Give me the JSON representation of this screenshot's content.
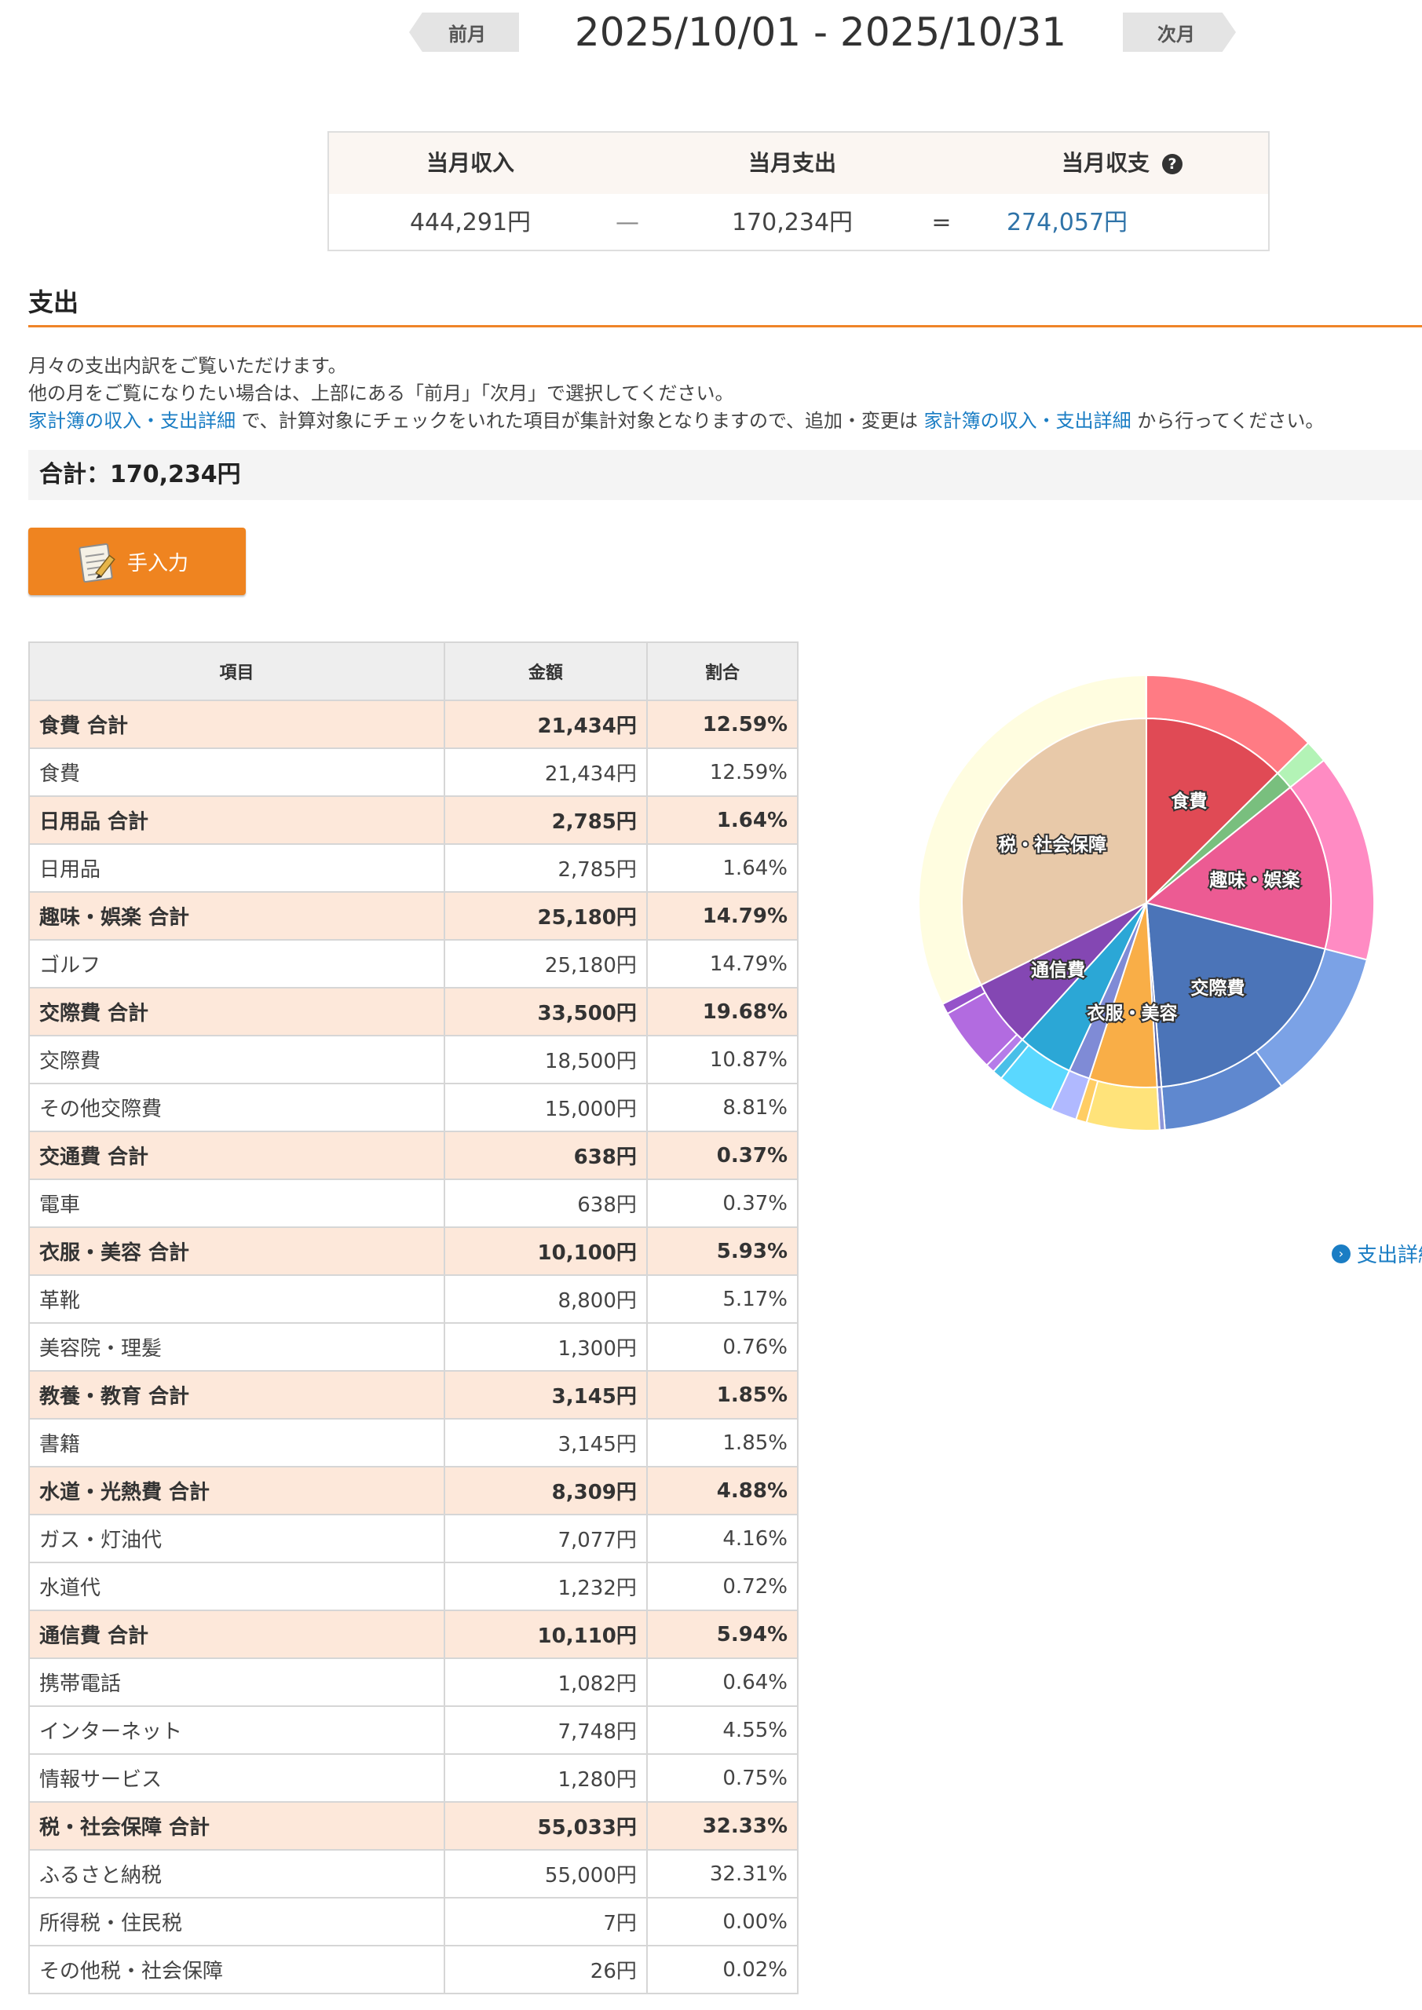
{
  "period": {
    "prev_label": "前月",
    "next_label": "次月",
    "range": "2025/10/01 - 2025/10/31"
  },
  "summary": {
    "income_label": "当月収入",
    "expense_label": "当月支出",
    "balance_label": "当月収支",
    "help_icon": "?",
    "income_value": "444,291円",
    "minus_sign": "—",
    "expense_value": "170,234円",
    "equals_sign": "=",
    "balance_value": "274,057円"
  },
  "section": {
    "title": "支出",
    "desc_line1": "月々の支出内訳をご覧いただけます。",
    "desc_line2": "他の月をご覧になりたい場合は、上部にある「前月」「次月」で選択してください。",
    "desc_link1": "家計簿の収入・支出詳細",
    "desc_mid": " で、計算対象にチェックをいれた項目が集計対象となりますので、追加・変更は ",
    "desc_link2": "家計簿の収入・支出詳細",
    "desc_end": " から行ってください。",
    "total": "合計：170,234円",
    "manual_label": "手入力",
    "detail_link": "支出詳細"
  },
  "table": {
    "headers": {
      "item": "項目",
      "amount": "金額",
      "ratio": "割合"
    },
    "rows": [
      {
        "item": "食費 合計",
        "amount": "21,434円",
        "ratio": "12.59%",
        "total": true
      },
      {
        "item": "食費",
        "amount": "21,434円",
        "ratio": "12.59%",
        "total": false
      },
      {
        "item": "日用品 合計",
        "amount": "2,785円",
        "ratio": "1.64%",
        "total": true
      },
      {
        "item": "日用品",
        "amount": "2,785円",
        "ratio": "1.64%",
        "total": false
      },
      {
        "item": "趣味・娯楽 合計",
        "amount": "25,180円",
        "ratio": "14.79%",
        "total": true
      },
      {
        "item": "ゴルフ",
        "amount": "25,180円",
        "ratio": "14.79%",
        "total": false
      },
      {
        "item": "交際費 合計",
        "amount": "33,500円",
        "ratio": "19.68%",
        "total": true
      },
      {
        "item": "交際費",
        "amount": "18,500円",
        "ratio": "10.87%",
        "total": false
      },
      {
        "item": "その他交際費",
        "amount": "15,000円",
        "ratio": "8.81%",
        "total": false
      },
      {
        "item": "交通費 合計",
        "amount": "638円",
        "ratio": "0.37%",
        "total": true
      },
      {
        "item": "電車",
        "amount": "638円",
        "ratio": "0.37%",
        "total": false
      },
      {
        "item": "衣服・美容 合計",
        "amount": "10,100円",
        "ratio": "5.93%",
        "total": true
      },
      {
        "item": "革靴",
        "amount": "8,800円",
        "ratio": "5.17%",
        "total": false
      },
      {
        "item": "美容院・理髪",
        "amount": "1,300円",
        "ratio": "0.76%",
        "total": false
      },
      {
        "item": "教養・教育 合計",
        "amount": "3,145円",
        "ratio": "1.85%",
        "total": true
      },
      {
        "item": "書籍",
        "amount": "3,145円",
        "ratio": "1.85%",
        "total": false
      },
      {
        "item": "水道・光熱費 合計",
        "amount": "8,309円",
        "ratio": "4.88%",
        "total": true
      },
      {
        "item": "ガス・灯油代",
        "amount": "7,077円",
        "ratio": "4.16%",
        "total": false
      },
      {
        "item": "水道代",
        "amount": "1,232円",
        "ratio": "0.72%",
        "total": false
      },
      {
        "item": "通信費 合計",
        "amount": "10,110円",
        "ratio": "5.94%",
        "total": true
      },
      {
        "item": "携帯電話",
        "amount": "1,082円",
        "ratio": "0.64%",
        "total": false
      },
      {
        "item": "インターネット",
        "amount": "7,748円",
        "ratio": "4.55%",
        "total": false
      },
      {
        "item": "情報サービス",
        "amount": "1,280円",
        "ratio": "0.75%",
        "total": false
      },
      {
        "item": "税・社会保障 合計",
        "amount": "55,033円",
        "ratio": "32.33%",
        "total": true
      },
      {
        "item": "ふるさと納税",
        "amount": "55,000円",
        "ratio": "32.31%",
        "total": false
      },
      {
        "item": "所得税・住民税",
        "amount": "7円",
        "ratio": "0.00%",
        "total": false
      },
      {
        "item": "その他税・社会保障",
        "amount": "26円",
        "ratio": "0.02%",
        "total": false
      }
    ]
  },
  "chart_data": {
    "type": "pie",
    "inner": [
      {
        "label": "食費",
        "value": 21434,
        "color": "#e04a55",
        "show_label": true
      },
      {
        "label": "日用品",
        "value": 2785,
        "color": "#79bf7e",
        "show_label": false
      },
      {
        "label": "趣味・娯楽",
        "value": 25180,
        "color": "#ec5b93",
        "show_label": true
      },
      {
        "label": "交際費",
        "value": 33500,
        "color": "#4b74b8",
        "show_label": true
      },
      {
        "label": "交通費",
        "value": 638,
        "color": "#5a66a6",
        "show_label": false
      },
      {
        "label": "衣服・美容",
        "value": 10100,
        "color": "#f9ae47",
        "show_label": true
      },
      {
        "label": "教養・教育",
        "value": 3145,
        "color": "#7f8bd6",
        "show_label": false
      },
      {
        "label": "水道・光熱費",
        "value": 8309,
        "color": "#2ba7d6",
        "show_label": false
      },
      {
        "label": "通信費",
        "value": 10110,
        "color": "#8447b3",
        "show_label": true
      },
      {
        "label": "税・社会保障",
        "value": 55033,
        "color": "#e8c9a9",
        "show_label": true
      }
    ],
    "outer": [
      {
        "label": "食費",
        "value": 21434,
        "color": "#ff7b84"
      },
      {
        "label": "日用品",
        "value": 2785,
        "color": "#b3f3b6"
      },
      {
        "label": "ゴルフ",
        "value": 25180,
        "color": "#ff8bc3"
      },
      {
        "label": "交際費",
        "value": 18500,
        "color": "#7ba2e6"
      },
      {
        "label": "その他交際費",
        "value": 15000,
        "color": "#5f88cf"
      },
      {
        "label": "電車",
        "value": 638,
        "color": "#8d96d8"
      },
      {
        "label": "革靴",
        "value": 8800,
        "color": "#ffe37a"
      },
      {
        "label": "美容院・理髪",
        "value": 1300,
        "color": "#ffcd63"
      },
      {
        "label": "書籍",
        "value": 3145,
        "color": "#b0b9ff"
      },
      {
        "label": "ガス・灯油代",
        "value": 7077,
        "color": "#5ad8ff"
      },
      {
        "label": "水道代",
        "value": 1232,
        "color": "#49bfe8"
      },
      {
        "label": "携帯電話",
        "value": 1082,
        "color": "#b57ce9"
      },
      {
        "label": "インターネット",
        "value": 7748,
        "color": "#b26be0"
      },
      {
        "label": "情報サービス",
        "value": 1280,
        "color": "#9552c9"
      },
      {
        "label": "ふるさと納税",
        "value": 55000,
        "color": "#fffde0"
      },
      {
        "label": "所得税・住民税",
        "value": 7,
        "color": "#fffde0"
      },
      {
        "label": "その他税・社会保障",
        "value": 26,
        "color": "#fffde0"
      }
    ]
  }
}
